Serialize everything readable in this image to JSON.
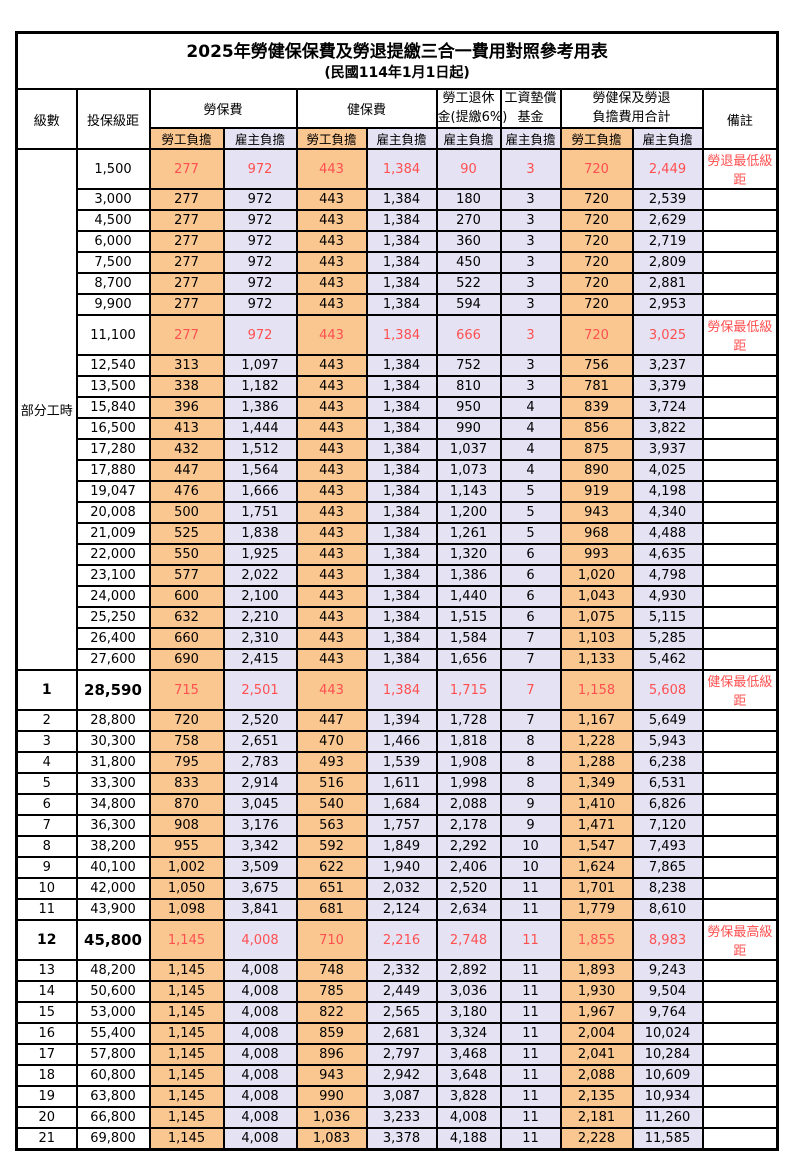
{
  "title": "2025年勞健保保費及勞退提繳三合一費用對照參考用表",
  "subtitle": "(民國114年1月1日起)",
  "header": {
    "level": "級數",
    "bracket": "投保級距",
    "labor": "勞保費",
    "health": "健保費",
    "pension_line1": "勞工退休",
    "pension_line2": "金(提繳6%)",
    "wage_fund_line1": "工資墊償",
    "wage_fund_line2": "基金",
    "total_line1": "勞健保及勞退",
    "total_line2": "負擔費用合計",
    "note": "備註",
    "emp": "勞工負擔",
    "er": "雇主負擔"
  },
  "part_time_label": "部分工時",
  "colors": {
    "employee_bg": "#FAC791",
    "employer_bg": "#E5E2F4",
    "highlight_text": "#FF5050",
    "border": "#000000"
  },
  "rows": [
    {
      "level": "",
      "bracket": "1,500",
      "v": [
        "277",
        "972",
        "443",
        "1,384",
        "90",
        "3",
        "720",
        "2,449"
      ],
      "note": "勞退最低級距",
      "red": true
    },
    {
      "level": "",
      "bracket": "3,000",
      "v": [
        "277",
        "972",
        "443",
        "1,384",
        "180",
        "3",
        "720",
        "2,539"
      ],
      "note": ""
    },
    {
      "level": "",
      "bracket": "4,500",
      "v": [
        "277",
        "972",
        "443",
        "1,384",
        "270",
        "3",
        "720",
        "2,629"
      ],
      "note": ""
    },
    {
      "level": "",
      "bracket": "6,000",
      "v": [
        "277",
        "972",
        "443",
        "1,384",
        "360",
        "3",
        "720",
        "2,719"
      ],
      "note": ""
    },
    {
      "level": "",
      "bracket": "7,500",
      "v": [
        "277",
        "972",
        "443",
        "1,384",
        "450",
        "3",
        "720",
        "2,809"
      ],
      "note": ""
    },
    {
      "level": "",
      "bracket": "8,700",
      "v": [
        "277",
        "972",
        "443",
        "1,384",
        "522",
        "3",
        "720",
        "2,881"
      ],
      "note": ""
    },
    {
      "level": "",
      "bracket": "9,900",
      "v": [
        "277",
        "972",
        "443",
        "1,384",
        "594",
        "3",
        "720",
        "2,953"
      ],
      "note": ""
    },
    {
      "level": "",
      "bracket": "11,100",
      "v": [
        "277",
        "972",
        "443",
        "1,384",
        "666",
        "3",
        "720",
        "3,025"
      ],
      "note": "勞保最低級距",
      "red": true
    },
    {
      "level": "",
      "bracket": "12,540",
      "v": [
        "313",
        "1,097",
        "443",
        "1,384",
        "752",
        "3",
        "756",
        "3,237"
      ],
      "note": ""
    },
    {
      "level": "",
      "bracket": "13,500",
      "v": [
        "338",
        "1,182",
        "443",
        "1,384",
        "810",
        "3",
        "781",
        "3,379"
      ],
      "note": ""
    },
    {
      "level": "",
      "bracket": "15,840",
      "v": [
        "396",
        "1,386",
        "443",
        "1,384",
        "950",
        "4",
        "839",
        "3,724"
      ],
      "note": ""
    },
    {
      "level": "",
      "bracket": "16,500",
      "v": [
        "413",
        "1,444",
        "443",
        "1,384",
        "990",
        "4",
        "856",
        "3,822"
      ],
      "note": ""
    },
    {
      "level": "",
      "bracket": "17,280",
      "v": [
        "432",
        "1,512",
        "443",
        "1,384",
        "1,037",
        "4",
        "875",
        "3,937"
      ],
      "note": ""
    },
    {
      "level": "",
      "bracket": "17,880",
      "v": [
        "447",
        "1,564",
        "443",
        "1,384",
        "1,073",
        "4",
        "890",
        "4,025"
      ],
      "note": ""
    },
    {
      "level": "",
      "bracket": "19,047",
      "v": [
        "476",
        "1,666",
        "443",
        "1,384",
        "1,143",
        "5",
        "919",
        "4,198"
      ],
      "note": ""
    },
    {
      "level": "",
      "bracket": "20,008",
      "v": [
        "500",
        "1,751",
        "443",
        "1,384",
        "1,200",
        "5",
        "943",
        "4,340"
      ],
      "note": ""
    },
    {
      "level": "",
      "bracket": "21,009",
      "v": [
        "525",
        "1,838",
        "443",
        "1,384",
        "1,261",
        "5",
        "968",
        "4,488"
      ],
      "note": ""
    },
    {
      "level": "",
      "bracket": "22,000",
      "v": [
        "550",
        "1,925",
        "443",
        "1,384",
        "1,320",
        "6",
        "993",
        "4,635"
      ],
      "note": ""
    },
    {
      "level": "",
      "bracket": "23,100",
      "v": [
        "577",
        "2,022",
        "443",
        "1,384",
        "1,386",
        "6",
        "1,020",
        "4,798"
      ],
      "note": ""
    },
    {
      "level": "",
      "bracket": "24,000",
      "v": [
        "600",
        "2,100",
        "443",
        "1,384",
        "1,440",
        "6",
        "1,043",
        "4,930"
      ],
      "note": ""
    },
    {
      "level": "",
      "bracket": "25,250",
      "v": [
        "632",
        "2,210",
        "443",
        "1,384",
        "1,515",
        "6",
        "1,075",
        "5,115"
      ],
      "note": ""
    },
    {
      "level": "",
      "bracket": "26,400",
      "v": [
        "660",
        "2,310",
        "443",
        "1,384",
        "1,584",
        "7",
        "1,103",
        "5,285"
      ],
      "note": ""
    },
    {
      "level": "",
      "bracket": "27,600",
      "v": [
        "690",
        "2,415",
        "443",
        "1,384",
        "1,656",
        "7",
        "1,133",
        "5,462"
      ],
      "note": ""
    },
    {
      "level": "1",
      "bracket": "28,590",
      "v": [
        "715",
        "2,501",
        "443",
        "1,384",
        "1,715",
        "7",
        "1,158",
        "5,608"
      ],
      "note": "健保最低級距",
      "red": true,
      "big": true
    },
    {
      "level": "2",
      "bracket": "28,800",
      "v": [
        "720",
        "2,520",
        "447",
        "1,394",
        "1,728",
        "7",
        "1,167",
        "5,649"
      ],
      "note": ""
    },
    {
      "level": "3",
      "bracket": "30,300",
      "v": [
        "758",
        "2,651",
        "470",
        "1,466",
        "1,818",
        "8",
        "1,228",
        "5,943"
      ],
      "note": ""
    },
    {
      "level": "4",
      "bracket": "31,800",
      "v": [
        "795",
        "2,783",
        "493",
        "1,539",
        "1,908",
        "8",
        "1,288",
        "6,238"
      ],
      "note": ""
    },
    {
      "level": "5",
      "bracket": "33,300",
      "v": [
        "833",
        "2,914",
        "516",
        "1,611",
        "1,998",
        "8",
        "1,349",
        "6,531"
      ],
      "note": ""
    },
    {
      "level": "6",
      "bracket": "34,800",
      "v": [
        "870",
        "3,045",
        "540",
        "1,684",
        "2,088",
        "9",
        "1,410",
        "6,826"
      ],
      "note": ""
    },
    {
      "level": "7",
      "bracket": "36,300",
      "v": [
        "908",
        "3,176",
        "563",
        "1,757",
        "2,178",
        "9",
        "1,471",
        "7,120"
      ],
      "note": ""
    },
    {
      "level": "8",
      "bracket": "38,200",
      "v": [
        "955",
        "3,342",
        "592",
        "1,849",
        "2,292",
        "10",
        "1,547",
        "7,493"
      ],
      "note": ""
    },
    {
      "level": "9",
      "bracket": "40,100",
      "v": [
        "1,002",
        "3,509",
        "622",
        "1,940",
        "2,406",
        "10",
        "1,624",
        "7,865"
      ],
      "note": ""
    },
    {
      "level": "10",
      "bracket": "42,000",
      "v": [
        "1,050",
        "3,675",
        "651",
        "2,032",
        "2,520",
        "11",
        "1,701",
        "8,238"
      ],
      "note": ""
    },
    {
      "level": "11",
      "bracket": "43,900",
      "v": [
        "1,098",
        "3,841",
        "681",
        "2,124",
        "2,634",
        "11",
        "1,779",
        "8,610"
      ],
      "note": ""
    },
    {
      "level": "12",
      "bracket": "45,800",
      "v": [
        "1,145",
        "4,008",
        "710",
        "2,216",
        "2,748",
        "11",
        "1,855",
        "8,983"
      ],
      "note": "勞保最高級距",
      "red": true,
      "big": true
    },
    {
      "level": "13",
      "bracket": "48,200",
      "v": [
        "1,145",
        "4,008",
        "748",
        "2,332",
        "2,892",
        "11",
        "1,893",
        "9,243"
      ],
      "note": ""
    },
    {
      "level": "14",
      "bracket": "50,600",
      "v": [
        "1,145",
        "4,008",
        "785",
        "2,449",
        "3,036",
        "11",
        "1,930",
        "9,504"
      ],
      "note": ""
    },
    {
      "level": "15",
      "bracket": "53,000",
      "v": [
        "1,145",
        "4,008",
        "822",
        "2,565",
        "3,180",
        "11",
        "1,967",
        "9,764"
      ],
      "note": ""
    },
    {
      "level": "16",
      "bracket": "55,400",
      "v": [
        "1,145",
        "4,008",
        "859",
        "2,681",
        "3,324",
        "11",
        "2,004",
        "10,024"
      ],
      "note": ""
    },
    {
      "level": "17",
      "bracket": "57,800",
      "v": [
        "1,145",
        "4,008",
        "896",
        "2,797",
        "3,468",
        "11",
        "2,041",
        "10,284"
      ],
      "note": ""
    },
    {
      "level": "18",
      "bracket": "60,800",
      "v": [
        "1,145",
        "4,008",
        "943",
        "2,942",
        "3,648",
        "11",
        "2,088",
        "10,609"
      ],
      "note": ""
    },
    {
      "level": "19",
      "bracket": "63,800",
      "v": [
        "1,145",
        "4,008",
        "990",
        "3,087",
        "3,828",
        "11",
        "2,135",
        "10,934"
      ],
      "note": ""
    },
    {
      "level": "20",
      "bracket": "66,800",
      "v": [
        "1,145",
        "4,008",
        "1,036",
        "3,233",
        "4,008",
        "11",
        "2,181",
        "11,260"
      ],
      "note": ""
    },
    {
      "level": "21",
      "bracket": "69,800",
      "v": [
        "1,145",
        "4,008",
        "1,083",
        "3,378",
        "4,188",
        "11",
        "2,228",
        "11,585"
      ],
      "note": ""
    }
  ]
}
